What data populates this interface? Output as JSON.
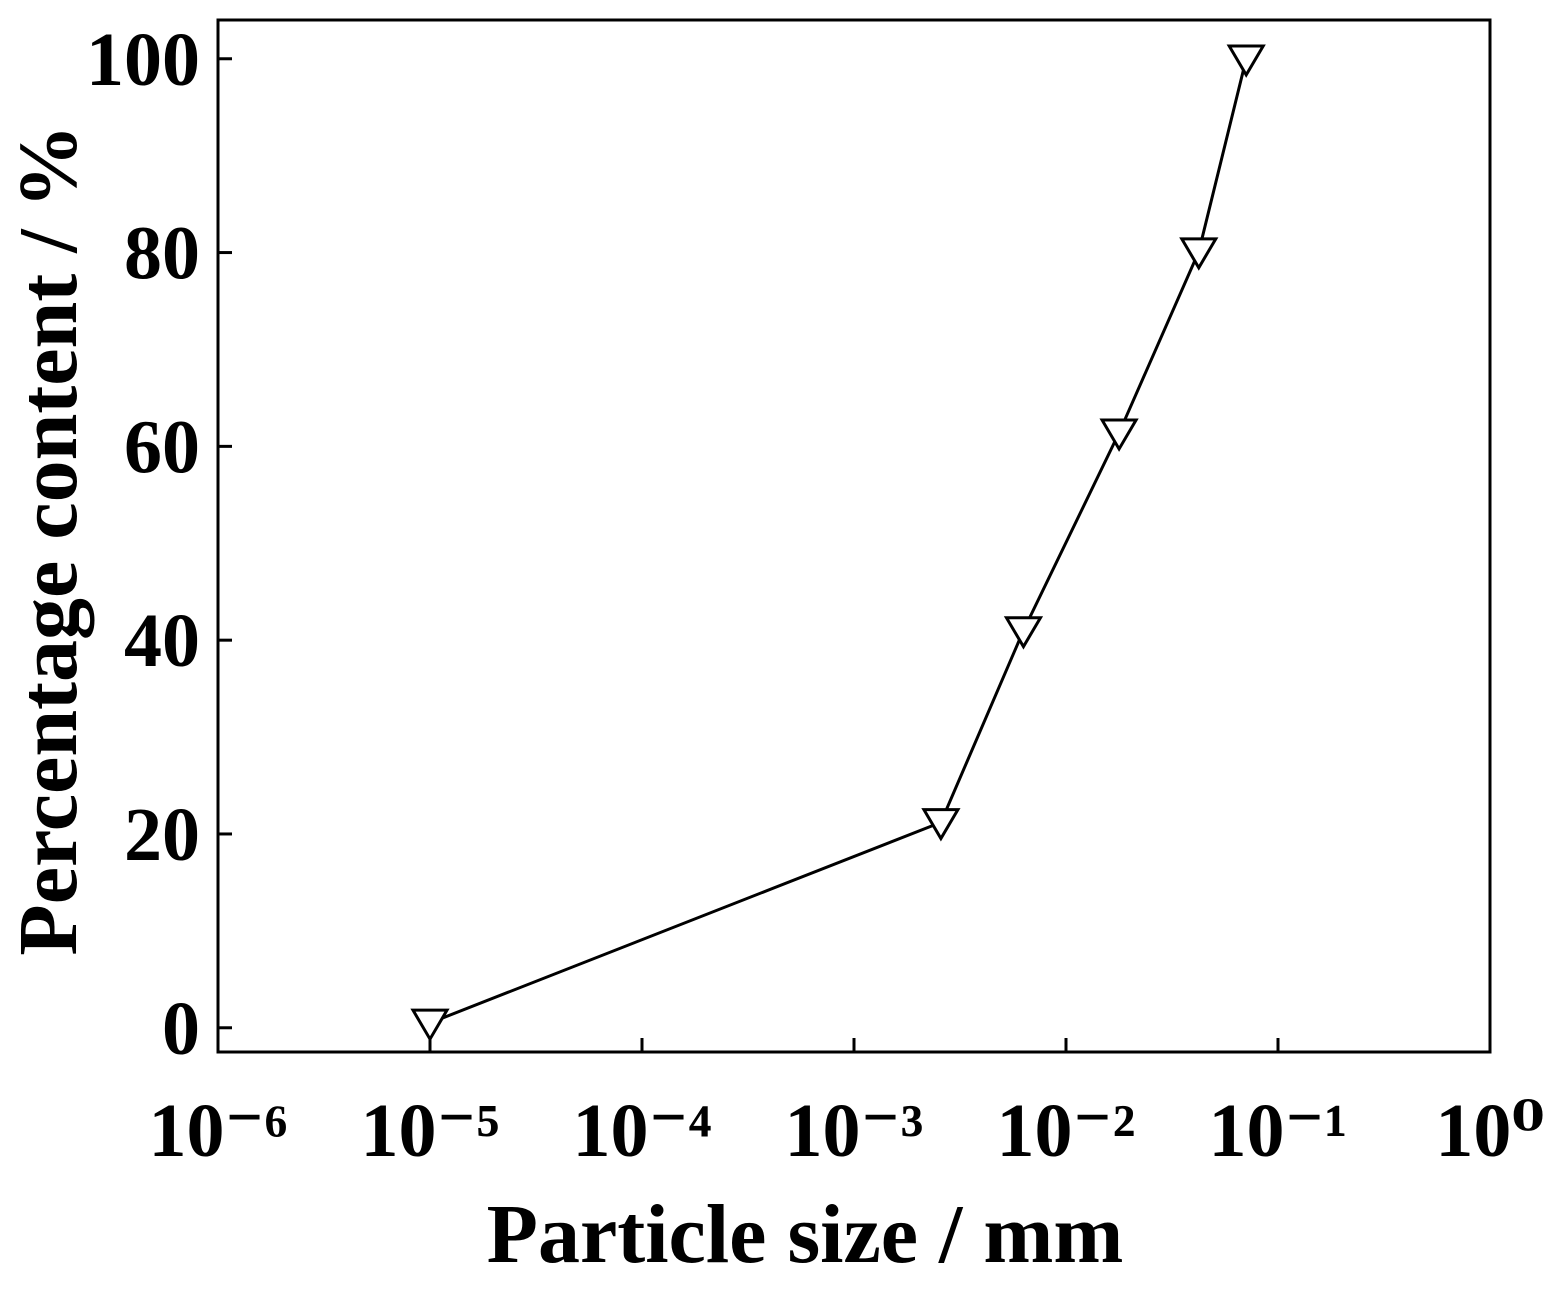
{
  "chart_data": {
    "type": "line",
    "x_label": "Particle size / mm",
    "y_label": "Percentage content / %",
    "x": [
      1e-05,
      0.00257,
      0.0063,
      0.0178,
      0.0423,
      0.0708
    ],
    "values": [
      0.5,
      21.2,
      41,
      61.4,
      80.1,
      100
    ],
    "color": "#000000",
    "marker": "triangle-down",
    "x_log": true,
    "xlim": [
      1e-06,
      1
    ],
    "xticks": [
      {
        "value": 1e-06,
        "label": "10⁻⁶"
      },
      {
        "value": 1e-05,
        "label": "10⁻⁵"
      },
      {
        "value": 0.0001,
        "label": "10⁻⁴"
      },
      {
        "value": 0.001,
        "label": "10⁻³"
      },
      {
        "value": 0.01,
        "label": "10⁻²"
      },
      {
        "value": 0.1,
        "label": "10⁻¹"
      },
      {
        "value": 1,
        "label": "10⁰"
      }
    ],
    "ylim": [
      -2.5,
      104
    ],
    "yticks": [
      0,
      20,
      40,
      60,
      80,
      100
    ],
    "grid": false
  }
}
